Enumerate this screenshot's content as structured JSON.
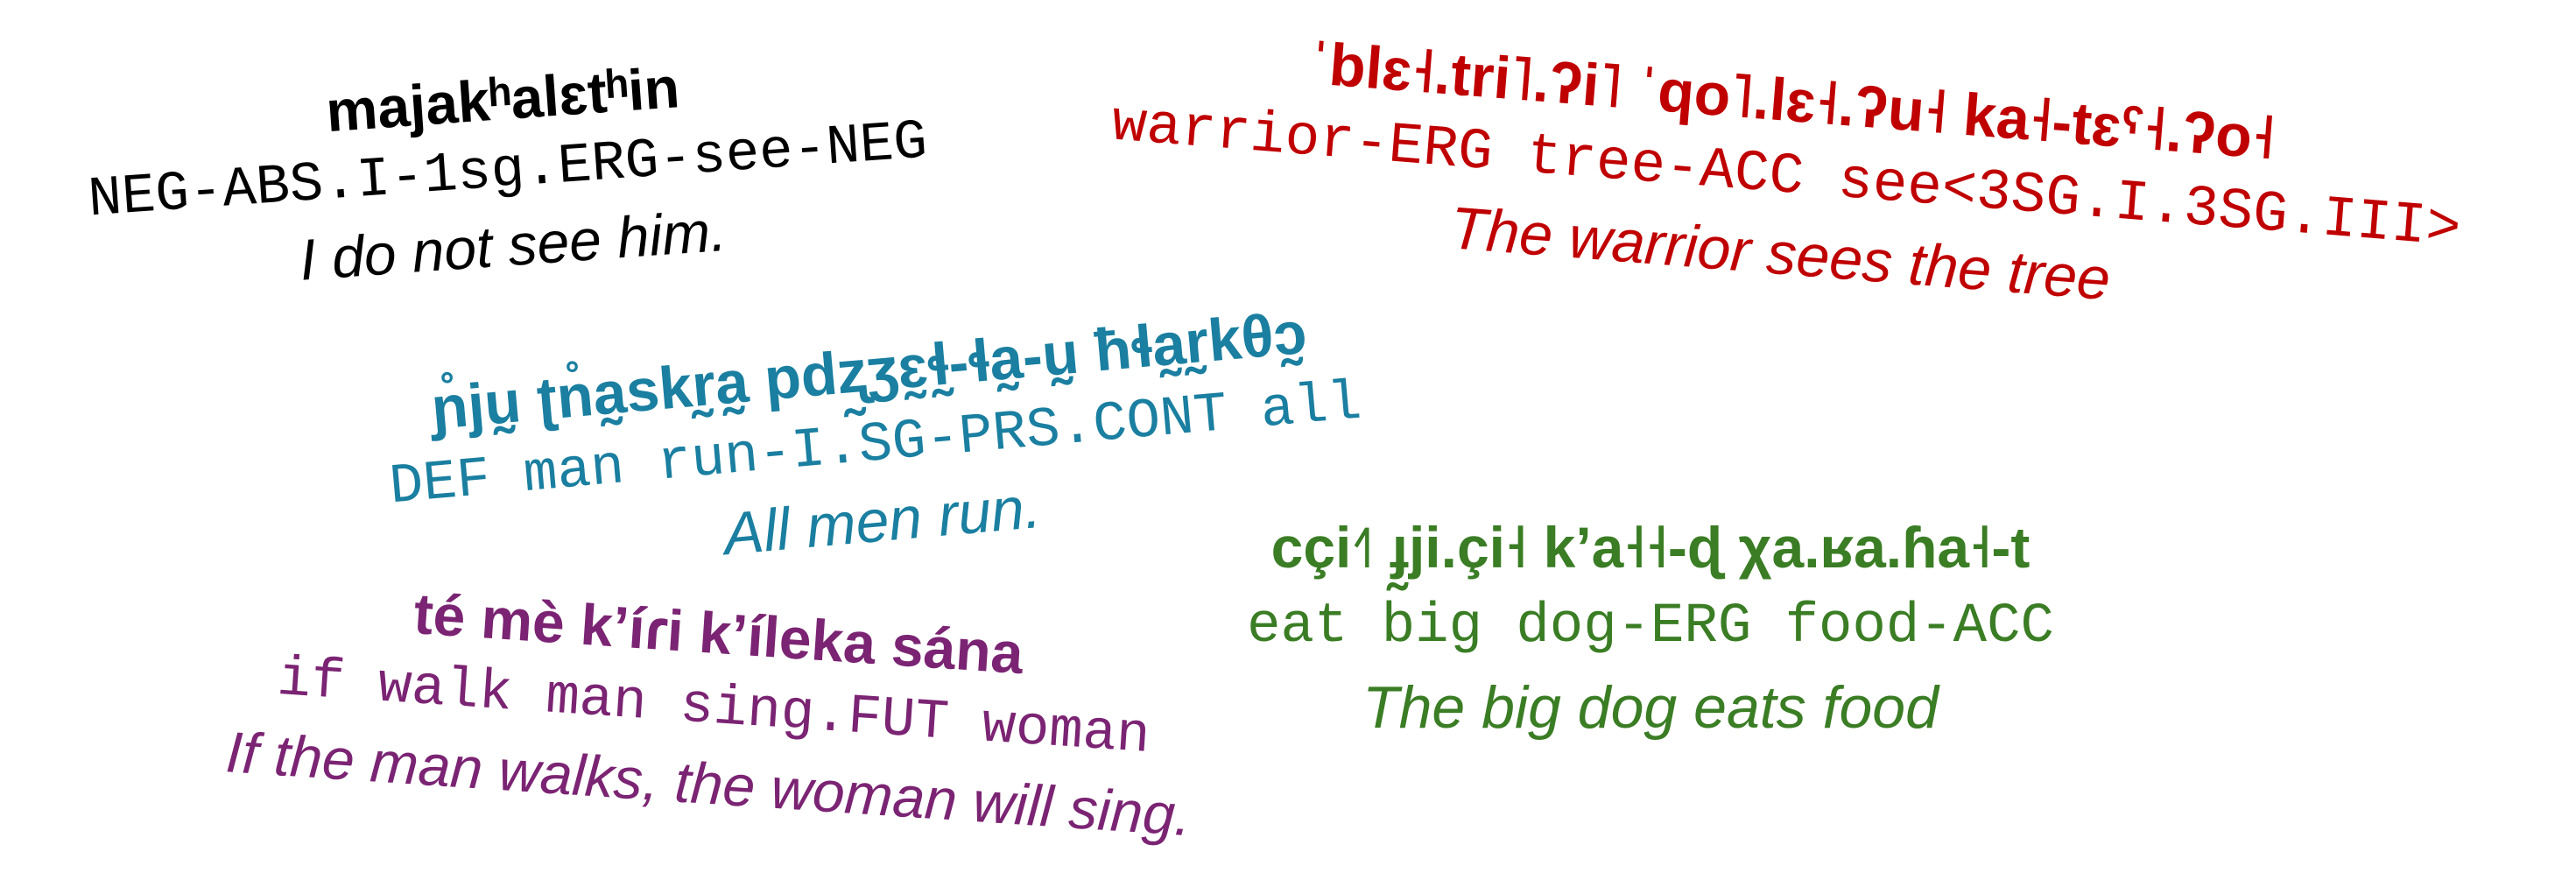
{
  "examples": [
    {
      "color": "#000000",
      "native": "majakʰalɛtʰin",
      "gloss": "NEG-ABS.I-1sg.ERG-see-NEG",
      "translation": "I do not see him."
    },
    {
      "color": "#c00000",
      "native": "ˈblɛ˧.tri˥.ʔi˥ ˈqo˥.lɛ˧.ʔu˧ ka˧-tɛˁ˧.ʔo˧",
      "gloss": "warrior-ERG tree-ACC see<3SG.I.3SG.III>",
      "translation": "The warrior sees the tree"
    },
    {
      "color": "#1a7fa0",
      "native": "ɲ̊jṵ ʈn̊a̰skr̰a̰ pdʐ̰ʒɛ̰ɬ̰-ɬa̰-ṵ ħɬa̰r̰kθɔ̰",
      "gloss": "DEF man run-I.SG-PRS.CONT all",
      "translation": "All men run."
    },
    {
      "color": "#3a7d24",
      "native": "cçi˧˥ ɟ̰ji.çi˧ k’a˧˧-ɖ χa.ʁa.ɦa˧-t",
      "gloss": "eat big dog-ERG food-ACC",
      "translation": "The big dog eats food"
    },
    {
      "color": "#7b2473",
      "native": "té mè k’íɾi k’íleka sána",
      "gloss": "if walk man sing.FUT woman",
      "translation": "If the man walks, the woman will sing."
    }
  ]
}
